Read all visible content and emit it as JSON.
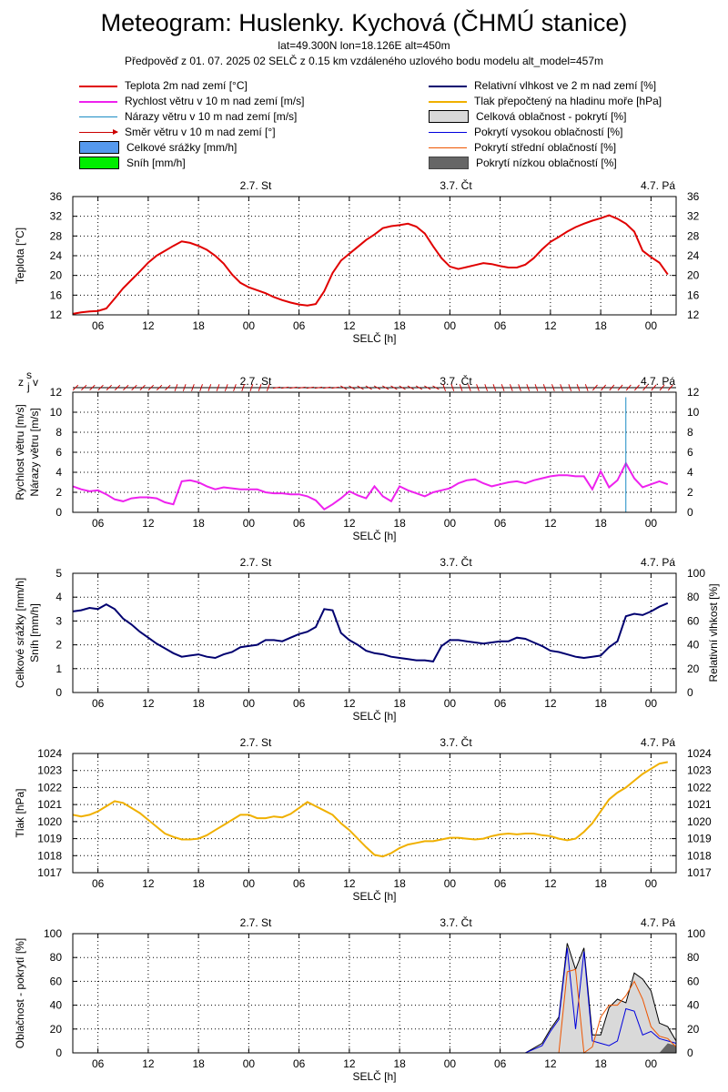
{
  "header": {
    "title": "Meteogram: Huslenky. Kychová (ČHMÚ stanice)",
    "subtitle1": "lat=49.300N lon=18.126E alt=450m",
    "subtitle2": "Předpověď z 01. 07. 2025 02 SELČ z 0.15 km vzdáleného uzlového bodu modelu alt_model=457m"
  },
  "legend": [
    {
      "label": "Teplota 2m nad zemí [°C]",
      "color": "#e00000",
      "kind": "line"
    },
    {
      "label": "Relativní vlhkost ve 2 m nad zemí [%]",
      "color": "#000070",
      "kind": "line"
    },
    {
      "label": "Rychlost větru v 10 m nad zemí [m/s]",
      "color": "#ee22ee",
      "kind": "line"
    },
    {
      "label": "Tlak přepočtený na hladinu moře [hPa]",
      "color": "#f0b000",
      "kind": "line"
    },
    {
      "label": "Nárazy větru v 10 m nad zemí [m/s]",
      "color": "#1a8cc4",
      "kind": "thin"
    },
    {
      "label": "Celková oblačnost - pokrytí [%]",
      "color": "#d9d9d9",
      "kind": "box"
    },
    {
      "label": "Směr větru v 10 m nad zemí [°]",
      "color": "#cc0000",
      "kind": "arrow"
    },
    {
      "label": "Pokrytí vysokou oblačností [%]",
      "color": "#0000dd",
      "kind": "thin"
    },
    {
      "label": "Celkové srážky [mm/h]",
      "color": "#5599ee",
      "kind": "box"
    },
    {
      "label": "Pokrytí střední oblačností [%]",
      "color": "#ee5500",
      "kind": "thin"
    },
    {
      "label": "Sníh [mm/h]",
      "color": "#00ee00",
      "kind": "box"
    },
    {
      "label": "Pokrytí nízkou oblačností [%]",
      "color": "#666666",
      "kind": "dark"
    }
  ],
  "axis": {
    "time_label": "SELČ [h]",
    "hour_ticks": [
      "06",
      "12",
      "18",
      "00",
      "06",
      "12",
      "18",
      "00",
      "06",
      "12",
      "18",
      "00"
    ],
    "day_labels": [
      "2.7. St",
      "3.7. Čt",
      "4.7. Pá"
    ],
    "wind_dir_labels": {
      "z": "z",
      "s": "s",
      "j": "j",
      "v": "v"
    }
  },
  "chart_data": [
    {
      "type": "line",
      "id": "temperature",
      "ylabel": "Teplota [°C]",
      "ylim": [
        12,
        36
      ],
      "yticks": [
        "12",
        "16",
        "20",
        "24",
        "28",
        "32",
        "36"
      ],
      "x_hours": [
        0,
        1,
        2,
        3,
        4,
        5,
        6,
        7,
        8,
        9,
        10,
        11,
        12,
        13,
        14,
        15,
        16,
        17,
        18,
        19,
        20,
        21,
        22,
        23,
        24,
        25,
        26,
        27,
        28,
        29,
        30,
        31,
        32,
        33,
        34,
        35,
        36,
        37,
        38,
        39,
        40,
        41,
        42,
        43,
        44,
        45,
        46,
        47,
        48,
        49,
        50,
        51,
        52,
        53,
        54,
        55,
        56,
        57,
        58,
        59,
        60,
        61,
        62,
        63,
        64,
        65,
        66,
        67,
        68,
        69,
        70,
        71
      ],
      "series": [
        {
          "values": [
            12.2,
            12.5,
            12.7,
            12.8,
            13.3,
            15.3,
            17.4,
            19.1,
            20.8,
            22.6,
            24.0,
            25.0,
            26.0,
            26.9,
            26.6,
            26.0,
            25.2,
            24.0,
            22.4,
            20.2,
            18.5,
            17.6,
            17.0,
            16.4,
            15.6,
            15.0,
            14.5,
            14.1,
            13.9,
            14.2,
            16.8,
            20.5,
            23.0,
            24.4,
            25.8,
            27.2,
            28.3,
            29.6,
            30.0,
            30.2,
            30.5,
            29.9,
            28.5,
            25.9,
            23.5,
            21.8,
            21.3,
            21.7,
            22.1,
            22.5,
            22.3,
            21.9,
            21.6,
            21.6,
            22.2,
            23.5,
            25.3,
            26.8,
            27.8,
            28.9,
            29.8,
            30.5,
            31.1,
            31.6,
            32.2,
            31.5,
            30.5,
            28.9,
            25.0,
            23.7,
            22.6,
            20.2
          ]
        }
      ]
    },
    {
      "type": "line",
      "id": "wind",
      "ylabel": "Rychlost větru [m/s]",
      "ylabel2": "Nárazy větru [m/s]",
      "ylim": [
        0,
        12
      ],
      "yticks": [
        "0",
        "2",
        "4",
        "6",
        "8",
        "10",
        "12"
      ],
      "x_hours": [
        0,
        1,
        2,
        3,
        4,
        5,
        6,
        7,
        8,
        9,
        10,
        11,
        12,
        13,
        14,
        15,
        16,
        17,
        18,
        19,
        20,
        21,
        22,
        23,
        24,
        25,
        26,
        27,
        28,
        29,
        30,
        31,
        32,
        33,
        34,
        35,
        36,
        37,
        38,
        39,
        40,
        41,
        42,
        43,
        44,
        45,
        46,
        47,
        48,
        49,
        50,
        51,
        52,
        53,
        54,
        55,
        56,
        57,
        58,
        59,
        60,
        61,
        62,
        63,
        64,
        65,
        66,
        67,
        68,
        69,
        70,
        71
      ],
      "series": [
        {
          "values": [
            2.6,
            2.3,
            2.1,
            2.2,
            1.8,
            1.3,
            1.1,
            1.4,
            1.5,
            1.5,
            1.4,
            1.0,
            0.8,
            3.1,
            3.2,
            3.0,
            2.6,
            2.3,
            2.5,
            2.4,
            2.3,
            2.3,
            2.3,
            2.0,
            1.9,
            1.9,
            1.8,
            1.8,
            1.6,
            1.2,
            0.3,
            0.8,
            1.4,
            2.1,
            1.7,
            1.4,
            2.6,
            1.6,
            1.1,
            2.6,
            2.2,
            1.9,
            1.6,
            2.0,
            2.2,
            2.4,
            2.9,
            3.2,
            3.3,
            2.9,
            2.6,
            2.8,
            3.0,
            3.1,
            2.9,
            3.2,
            3.4,
            3.6,
            3.7,
            3.7,
            3.6,
            3.6,
            2.3,
            4.1,
            2.5,
            3.2,
            4.9,
            3.4,
            2.5,
            2.8,
            3.1,
            2.8
          ]
        },
        {
          "gust_hour": 66,
          "gust_value": 11.5
        }
      ]
    },
    {
      "type": "line",
      "id": "humidity",
      "ylabel": "Celkové srážky [mm/h]",
      "ylabel2": "Sníh [mm/h]",
      "ylabel_right": "Relativní vlhkost [%]",
      "ylim": [
        0,
        5
      ],
      "yticks": [
        "0",
        "1",
        "2",
        "3",
        "4",
        "5"
      ],
      "ylim_right": [
        0,
        100
      ],
      "yticks_right": [
        "0",
        "20",
        "40",
        "60",
        "80",
        "100"
      ],
      "x_hours": [
        0,
        1,
        2,
        3,
        4,
        5,
        6,
        7,
        8,
        9,
        10,
        11,
        12,
        13,
        14,
        15,
        16,
        17,
        18,
        19,
        20,
        21,
        22,
        23,
        24,
        25,
        26,
        27,
        28,
        29,
        30,
        31,
        32,
        33,
        34,
        35,
        36,
        37,
        38,
        39,
        40,
        41,
        42,
        43,
        44,
        45,
        46,
        47,
        48,
        49,
        50,
        51,
        52,
        53,
        54,
        55,
        56,
        57,
        58,
        59,
        60,
        61,
        62,
        63,
        64,
        65,
        66,
        67,
        68,
        69,
        70,
        71
      ],
      "series": [
        {
          "values": [
            68,
            69,
            71,
            70,
            74,
            70,
            62,
            57,
            51,
            46,
            41,
            37,
            33,
            30,
            31,
            32,
            30,
            29,
            32,
            34,
            38,
            39,
            40,
            44,
            44,
            43,
            46,
            49,
            51,
            55,
            70,
            69,
            50,
            44,
            40,
            35,
            33,
            32,
            30,
            29,
            28,
            27,
            27,
            26,
            39,
            44,
            44,
            43,
            42,
            41,
            42,
            43,
            43,
            46,
            45,
            42,
            39,
            35,
            34,
            32,
            30,
            29,
            30,
            31,
            38,
            43,
            64,
            66,
            65,
            68,
            72,
            75
          ]
        }
      ]
    },
    {
      "type": "line",
      "id": "pressure",
      "ylabel": "Tlak [hPa]",
      "ylim": [
        1017,
        1024
      ],
      "yticks": [
        "1017",
        "1018",
        "1019",
        "1020",
        "1021",
        "1022",
        "1023",
        "1024"
      ],
      "x_hours": [
        0,
        1,
        2,
        3,
        4,
        5,
        6,
        7,
        8,
        9,
        10,
        11,
        12,
        13,
        14,
        15,
        16,
        17,
        18,
        19,
        20,
        21,
        22,
        23,
        24,
        25,
        26,
        27,
        28,
        29,
        30,
        31,
        32,
        33,
        34,
        35,
        36,
        37,
        38,
        39,
        40,
        41,
        42,
        43,
        44,
        45,
        46,
        47,
        48,
        49,
        50,
        51,
        52,
        53,
        54,
        55,
        56,
        57,
        58,
        59,
        60,
        61,
        62,
        63,
        64,
        65,
        66,
        67,
        68,
        69,
        70,
        71
      ],
      "series": [
        {
          "values": [
            1020.4,
            1020.3,
            1020.4,
            1020.6,
            1020.9,
            1021.2,
            1021.1,
            1020.8,
            1020.5,
            1020.1,
            1019.7,
            1019.3,
            1019.1,
            1018.95,
            1018.95,
            1019.0,
            1019.2,
            1019.5,
            1019.8,
            1020.1,
            1020.4,
            1020.4,
            1020.2,
            1020.2,
            1020.3,
            1020.25,
            1020.45,
            1020.8,
            1021.15,
            1020.9,
            1020.65,
            1020.4,
            1019.9,
            1019.5,
            1019.0,
            1018.5,
            1018.05,
            1017.95,
            1018.15,
            1018.45,
            1018.65,
            1018.75,
            1018.85,
            1018.85,
            1018.95,
            1019.05,
            1019.05,
            1019.0,
            1018.95,
            1019.0,
            1019.15,
            1019.25,
            1019.3,
            1019.25,
            1019.3,
            1019.3,
            1019.2,
            1019.15,
            1019.0,
            1018.9,
            1019.0,
            1019.4,
            1019.9,
            1020.6,
            1021.3,
            1021.7,
            1022.0,
            1022.4,
            1022.8,
            1023.1,
            1023.4,
            1023.5
          ]
        }
      ]
    },
    {
      "type": "area",
      "id": "clouds",
      "ylabel": "Oblačnost - pokrytí [%]",
      "ylim": [
        0,
        100
      ],
      "yticks": [
        "0",
        "20",
        "40",
        "60",
        "80",
        "100"
      ],
      "x_hours": [
        54,
        55,
        56,
        57,
        58,
        59,
        60,
        61,
        62,
        63,
        64,
        65,
        66,
        67,
        68,
        69,
        70,
        71,
        72
      ],
      "series": [
        {
          "name": "Celková oblačnost - pokrytí [%]",
          "values": [
            0,
            4,
            8,
            20,
            30,
            92,
            70,
            88,
            15,
            15,
            38,
            45,
            42,
            67,
            62,
            52,
            25,
            22,
            10
          ]
        },
        {
          "name": "Pokrytí vysokou oblačností [%]",
          "values": [
            0,
            3,
            6,
            18,
            28,
            88,
            20,
            85,
            10,
            8,
            6,
            10,
            37,
            35,
            15,
            18,
            12,
            10,
            8
          ]
        },
        {
          "name": "Pokrytí střední oblačností [%]",
          "values": [
            0,
            0,
            0,
            0,
            0,
            68,
            70,
            0,
            5,
            30,
            40,
            40,
            48,
            60,
            45,
            22,
            14,
            12,
            5
          ]
        },
        {
          "name": "Pokrytí nízkou oblačností [%]",
          "values": [
            0,
            0,
            0,
            0,
            0,
            0,
            0,
            0,
            0,
            0,
            0,
            0,
            0,
            0,
            0,
            0,
            0,
            8,
            6
          ]
        }
      ]
    }
  ]
}
